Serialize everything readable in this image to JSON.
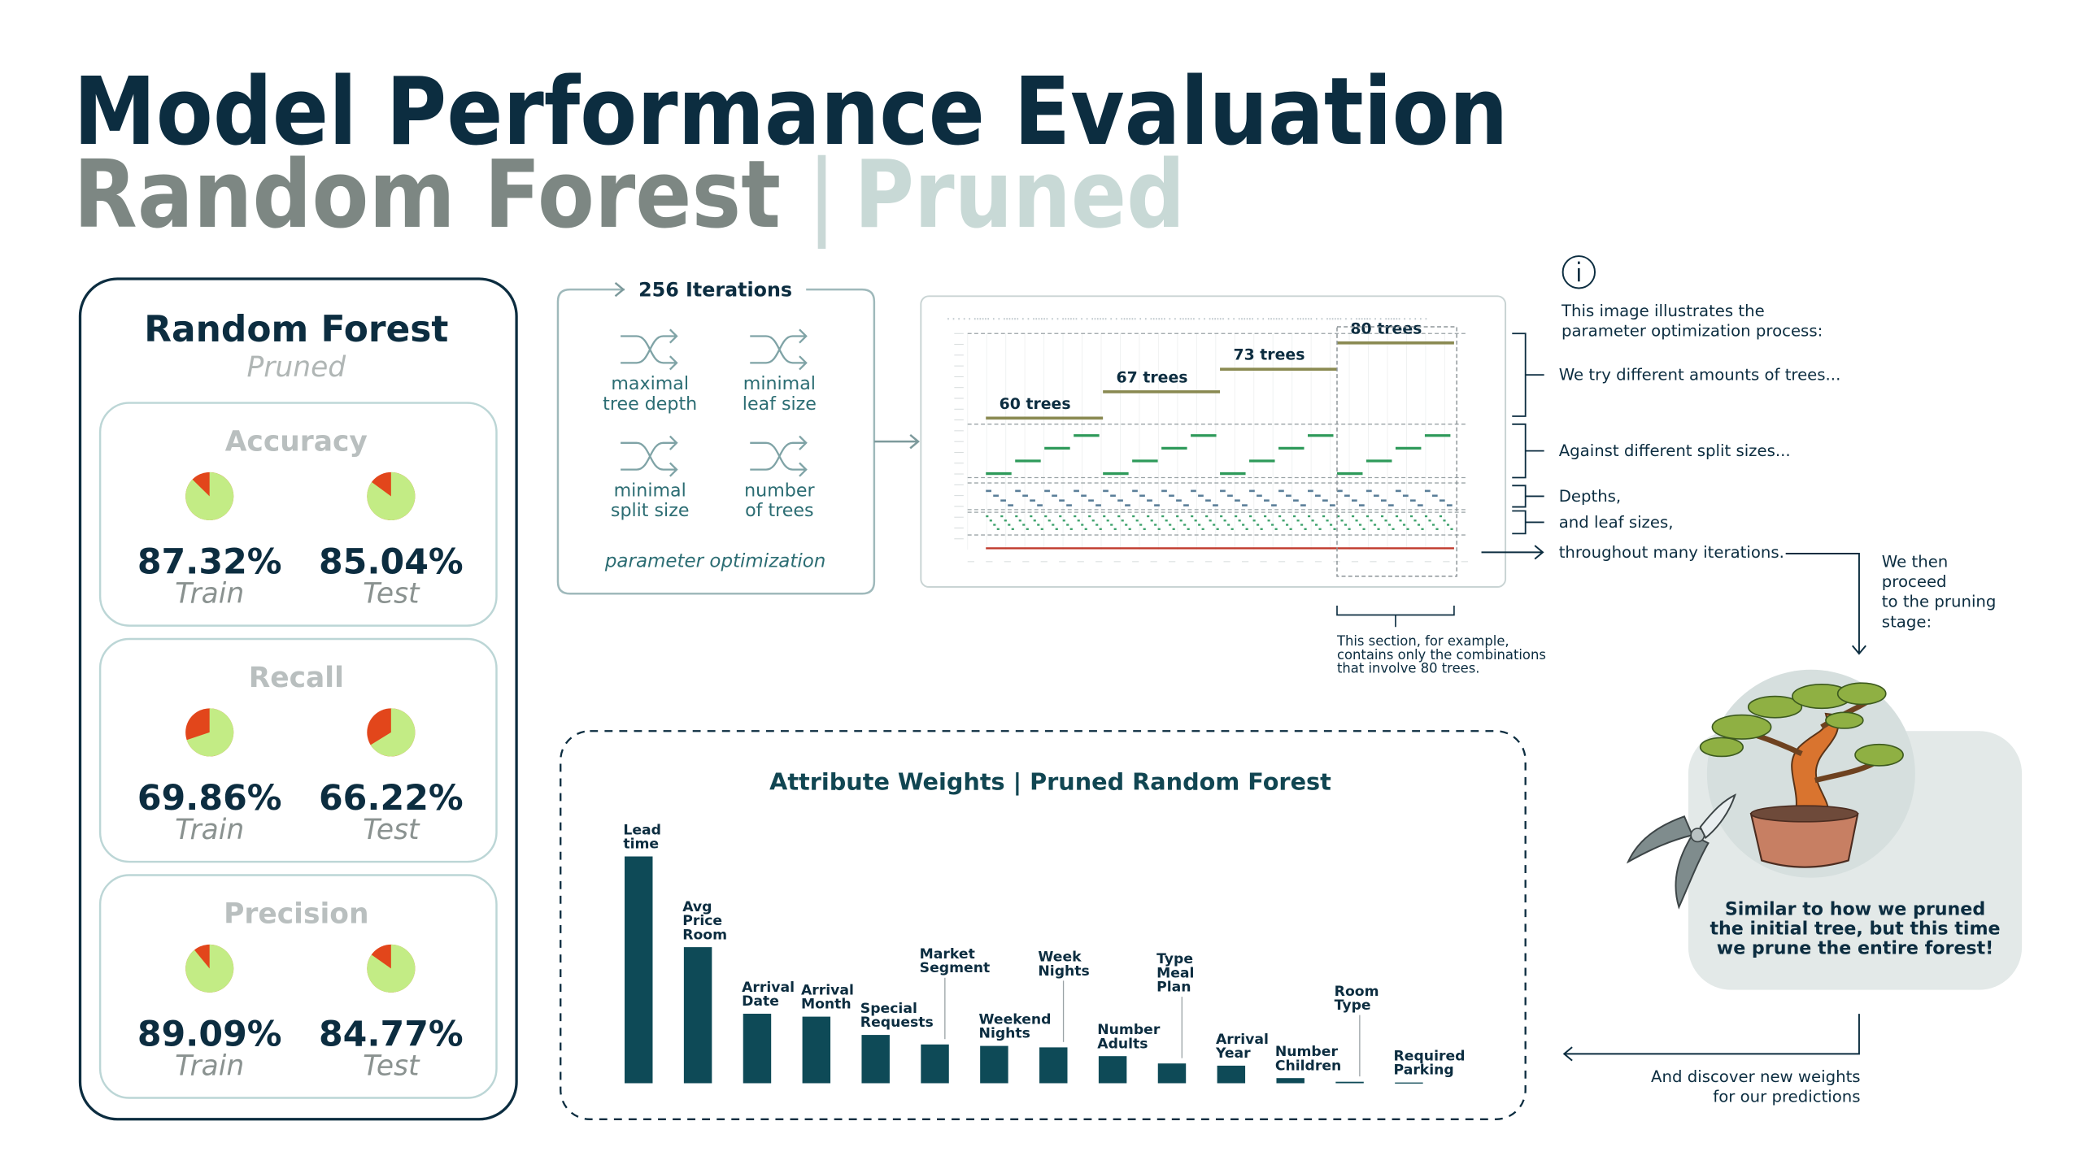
{
  "header": {
    "title": "Model Performance Evaluation",
    "subtitle": "Random Forest",
    "separator": "|",
    "subtitle_tag": "Pruned"
  },
  "panel": {
    "title": "Random Forest",
    "subtitle": "Pruned"
  },
  "diagram": {
    "title": "256 Iterations",
    "parameters": [
      [
        "maximal",
        "tree depth"
      ],
      [
        "minimal",
        "leaf size"
      ],
      [
        "minimal",
        "split size"
      ],
      [
        "number",
        "of trees"
      ]
    ],
    "caption": "parameter optimization"
  },
  "notes": {
    "intro": [
      "This image illustrates the",
      "parameter optimization process:"
    ],
    "trees": "We try different amounts of trees...",
    "splits": "Against different split sizes...",
    "depths": "Depths,",
    "leaves": "and leaf sizes,",
    "iterations": "throughout many iterations.",
    "pruning": [
      "We then",
      "proceed",
      "to the pruning",
      "stage:"
    ],
    "section": [
      "This section, for example,",
      "contains only the combinations",
      "that involve 80 trees."
    ],
    "forest": [
      "Similar to how we pruned",
      "the initial tree, but this time",
      "we prune the entire forest!"
    ],
    "weights": [
      "And discover new weights",
      "for our predictions"
    ]
  },
  "chart_data": [
    {
      "type": "pie",
      "title": "Accuracy",
      "categories": [
        "Train",
        "Test"
      ],
      "values": [
        87.32,
        85.04
      ],
      "value_labels": [
        "87.32%",
        "85.04%"
      ],
      "color": "#c3ec85",
      "rest_color": "#e2461b"
    },
    {
      "type": "pie",
      "title": "Recall",
      "categories": [
        "Train",
        "Test"
      ],
      "values": [
        69.86,
        66.22
      ],
      "value_labels": [
        "69.86%",
        "66.22%"
      ],
      "color": "#c3ec85",
      "rest_color": "#e2461b"
    },
    {
      "type": "pie",
      "title": "Precision",
      "categories": [
        "Train",
        "Test"
      ],
      "values": [
        89.09,
        84.77
      ],
      "value_labels": [
        "89.09%",
        "84.77%"
      ],
      "color": "#c3ec85",
      "rest_color": "#e2461b"
    },
    {
      "type": "line",
      "x": [
        0,
        64,
        64,
        64,
        128,
        128,
        128,
        192,
        192,
        192,
        256
      ],
      "values": [
        60,
        60,
        null,
        67,
        67,
        null,
        73,
        73,
        null,
        80,
        80
      ],
      "value_labels": [
        "60 trees",
        null,
        null,
        "67 trees",
        null,
        null,
        "73 trees",
        null,
        null,
        "80 trees",
        null
      ],
      "color": "#8a8a52",
      "xlim": [
        -10,
        260
      ],
      "ylim": [
        25,
        82.5
      ]
    },
    {
      "type": "bar",
      "title": "Attribute Weights | Pruned Random Forest",
      "categories": [
        "Lead time",
        "Avg Price Room",
        "Arrival Date",
        "Arrival Month",
        "Special Requests",
        "Market Segment",
        "Weekend Nights",
        "Week Nights",
        "Number Adults",
        "Type Meal Plan",
        "Arrival Year",
        "Number Children",
        "Room Type",
        "Required Parking"
      ],
      "values": [
        0.31,
        0.186,
        0.095,
        0.091,
        0.066,
        0.053,
        0.051,
        0.049,
        0.037,
        0.027,
        0.024,
        0.007,
        0.002,
        0.001
      ],
      "color": "#0e4a57"
    }
  ]
}
